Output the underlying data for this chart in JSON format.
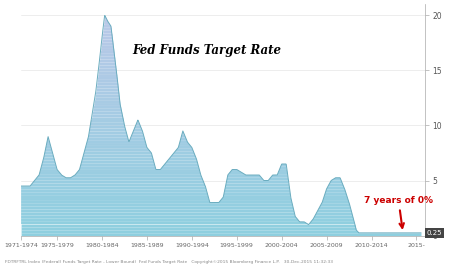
{
  "title": "Fed Funds Target Rate",
  "annotation_text": "7 years of 0%",
  "annotation_color": "#cc0000",
  "ylabel_right": [
    "0",
    "5",
    "10",
    "15",
    "20"
  ],
  "yticks_right": [
    0,
    5,
    10,
    15,
    20
  ],
  "ylim": [
    0,
    21
  ],
  "xlim_start": 1971,
  "xlim_end": 2016,
  "fill_color_top": "#8ecfdf",
  "fill_color_bottom": "#bcc8e8",
  "line_color": "#6aacbf",
  "background_color": "#ffffff",
  "current_value_box": "0.25",
  "footer_text": "FDTRFTRL Index (Federal) Funds Target Rate - Lower Bound)  Fed Funds Target Rate   Copyright©2015 Bloomberg Finance L.P.   30-Dec-2015 11:32:33",
  "xtick_positions": [
    1971,
    1975,
    1980,
    1985,
    1990,
    1995,
    2000,
    2005,
    2010,
    2015
  ],
  "xtick_labels": [
    "1971-1974",
    "1975-1979",
    "1980-1984",
    "1985-1989",
    "1990-1994",
    "1995-1999",
    "2000-2004",
    "2005-2009",
    "2010-2014",
    "2015-"
  ],
  "years": [
    1971.0,
    1971.5,
    1972.0,
    1972.5,
    1973.0,
    1973.5,
    1974.0,
    1974.5,
    1975.0,
    1975.5,
    1976.0,
    1976.5,
    1977.0,
    1977.5,
    1978.0,
    1978.5,
    1979.0,
    1979.3,
    1979.6,
    1980.0,
    1980.3,
    1980.6,
    1981.0,
    1981.3,
    1981.6,
    1982.0,
    1982.5,
    1983.0,
    1983.5,
    1984.0,
    1984.5,
    1985.0,
    1985.5,
    1986.0,
    1986.5,
    1987.0,
    1987.5,
    1988.0,
    1988.5,
    1989.0,
    1989.5,
    1990.0,
    1990.5,
    1991.0,
    1991.5,
    1992.0,
    1992.5,
    1993.0,
    1993.5,
    1994.0,
    1994.5,
    1995.0,
    1995.5,
    1996.0,
    1996.5,
    1997.0,
    1997.5,
    1998.0,
    1998.5,
    1999.0,
    1999.5,
    2000.0,
    2000.5,
    2001.0,
    2001.5,
    2002.0,
    2002.5,
    2003.0,
    2003.5,
    2004.0,
    2004.5,
    2005.0,
    2005.5,
    2006.0,
    2006.5,
    2007.0,
    2007.5,
    2008.0,
    2008.3,
    2008.6,
    2009.0,
    2009.5,
    2010.0,
    2010.5,
    2011.0,
    2011.5,
    2012.0,
    2012.5,
    2013.0,
    2013.5,
    2014.0,
    2014.5,
    2015.0,
    2015.5
  ],
  "values": [
    4.5,
    4.5,
    4.5,
    5.0,
    5.5,
    7.0,
    9.0,
    7.5,
    6.0,
    5.5,
    5.25,
    5.25,
    5.5,
    6.0,
    7.5,
    9.0,
    11.5,
    13.0,
    15.0,
    18.0,
    20.0,
    19.5,
    19.0,
    17.0,
    15.0,
    12.0,
    10.0,
    8.5,
    9.5,
    10.5,
    9.5,
    8.0,
    7.5,
    6.0,
    6.0,
    6.5,
    7.0,
    7.5,
    8.0,
    9.5,
    8.5,
    8.0,
    7.0,
    5.5,
    4.5,
    3.0,
    3.0,
    3.0,
    3.5,
    5.5,
    6.0,
    6.0,
    5.75,
    5.5,
    5.5,
    5.5,
    5.5,
    5.0,
    5.0,
    5.5,
    5.5,
    6.5,
    6.5,
    3.5,
    1.75,
    1.25,
    1.25,
    1.0,
    1.5,
    2.25,
    3.0,
    4.25,
    5.0,
    5.25,
    5.25,
    4.25,
    3.0,
    1.5,
    0.5,
    0.25,
    0.25,
    0.25,
    0.25,
    0.25,
    0.25,
    0.25,
    0.25,
    0.25,
    0.25,
    0.25,
    0.25,
    0.25,
    0.25,
    0.25
  ]
}
